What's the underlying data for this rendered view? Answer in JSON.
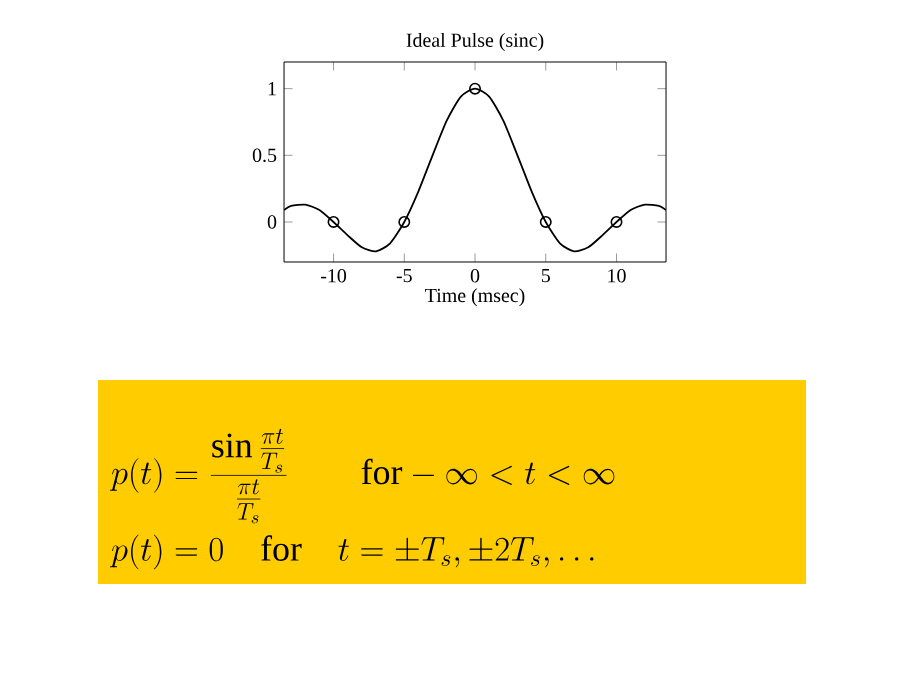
{
  "chart_data": {
    "type": "line",
    "title": "Ideal Pulse  (sinc)",
    "xlabel": "Time (msec)",
    "xlim": [
      -13.5,
      13.5
    ],
    "ylim": [
      -0.3,
      1.2
    ],
    "xticks": [
      -10,
      -5,
      0,
      5,
      10
    ],
    "yticks": [
      0,
      0.5,
      1
    ],
    "series": [
      {
        "color": "#000000",
        "x": [
          -13.5,
          -13,
          -12,
          -11,
          -10,
          -9,
          -8,
          -7,
          -6,
          -5,
          -4,
          -3,
          -2,
          -1,
          0,
          1,
          2,
          3,
          4,
          5,
          6,
          7,
          8,
          9,
          10,
          11,
          12,
          13,
          13.5
        ],
        "values": [
          0.09,
          0.12,
          0.13,
          0.09,
          0,
          -0.1,
          -0.19,
          -0.22,
          -0.16,
          0,
          0.23,
          0.5,
          0.76,
          0.94,
          1,
          0.94,
          0.76,
          0.5,
          0.23,
          0,
          -0.16,
          -0.22,
          -0.19,
          -0.1,
          0,
          0.09,
          0.13,
          0.12,
          0.09
        ]
      },
      {
        "type": "scatter",
        "color": "#000000",
        "marker": "circle",
        "x": [
          -10,
          -5,
          0,
          5,
          10
        ],
        "values": [
          0,
          0,
          1,
          0,
          0
        ]
      }
    ],
    "annotations": [
      "p(t)=\\frac{\\sin\\frac{\\pi t}{T_s}}{\\frac{\\pi t}{T_s}}\\qquad\\mathrm{for}-\\infty<t<\\infty",
      "p(t)=0\\quad\\mathrm{for}\\quad t=\\pm T_s,\\pm 2T_s,\\ldots"
    ]
  }
}
